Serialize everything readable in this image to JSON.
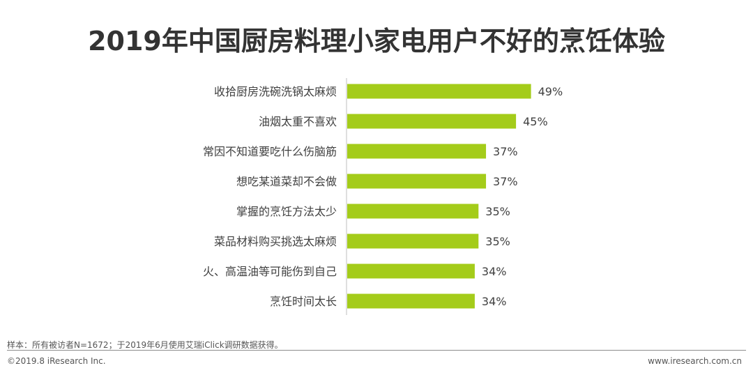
{
  "chart_data": {
    "type": "bar",
    "orientation": "horizontal",
    "title": "2019年中国厨房料理小家电用户不好的烹饪体验",
    "categories": [
      "收拾厨房洗碗洗锅太麻烦",
      "油烟太重不喜欢",
      "常因不知道要吃什么伤脑筋",
      "想吃某道菜却不会做",
      "掌握的烹饪方法太少",
      "菜品材料购买挑选太麻烦",
      "火、高温油等可能伤到自己",
      "烹饪时间太长"
    ],
    "values": [
      49,
      45,
      37,
      37,
      35,
      35,
      34,
      34
    ],
    "value_labels": [
      "49%",
      "45%",
      "37%",
      "37%",
      "35%",
      "35%",
      "34%",
      "34%"
    ],
    "unit": "%",
    "xlim": [
      0,
      100
    ],
    "grid": false,
    "legend": "none",
    "bar_color": "#a4cc1a"
  },
  "footer": {
    "note": "样本：所有被访者N=1672；于2019年6月使用艾瑞iClick调研数据获得。",
    "copyright": "©2019.8 iResearch Inc.",
    "website": "www.iresearch.com.cn"
  }
}
